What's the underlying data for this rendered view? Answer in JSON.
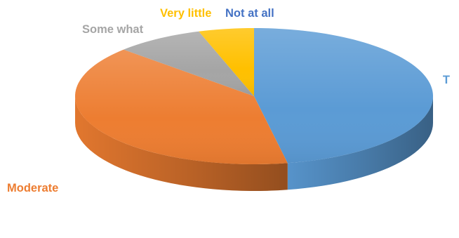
{
  "chart_data": {
    "type": "pie",
    "style": "3d",
    "title": "",
    "legend": "none",
    "categories": [
      "T",
      "Moderate",
      "Some what",
      "Very little",
      "Not at all"
    ],
    "values": [
      47,
      40,
      8,
      5,
      0
    ],
    "colors": [
      "#5B9BD5",
      "#ED7D31",
      "#A5A5A5",
      "#FFC000",
      "#4472C4"
    ],
    "label_colors": [
      "#5B9BD5",
      "#ED7D31",
      "#A5A5A5",
      "#FFC000",
      "#4472C4"
    ]
  }
}
